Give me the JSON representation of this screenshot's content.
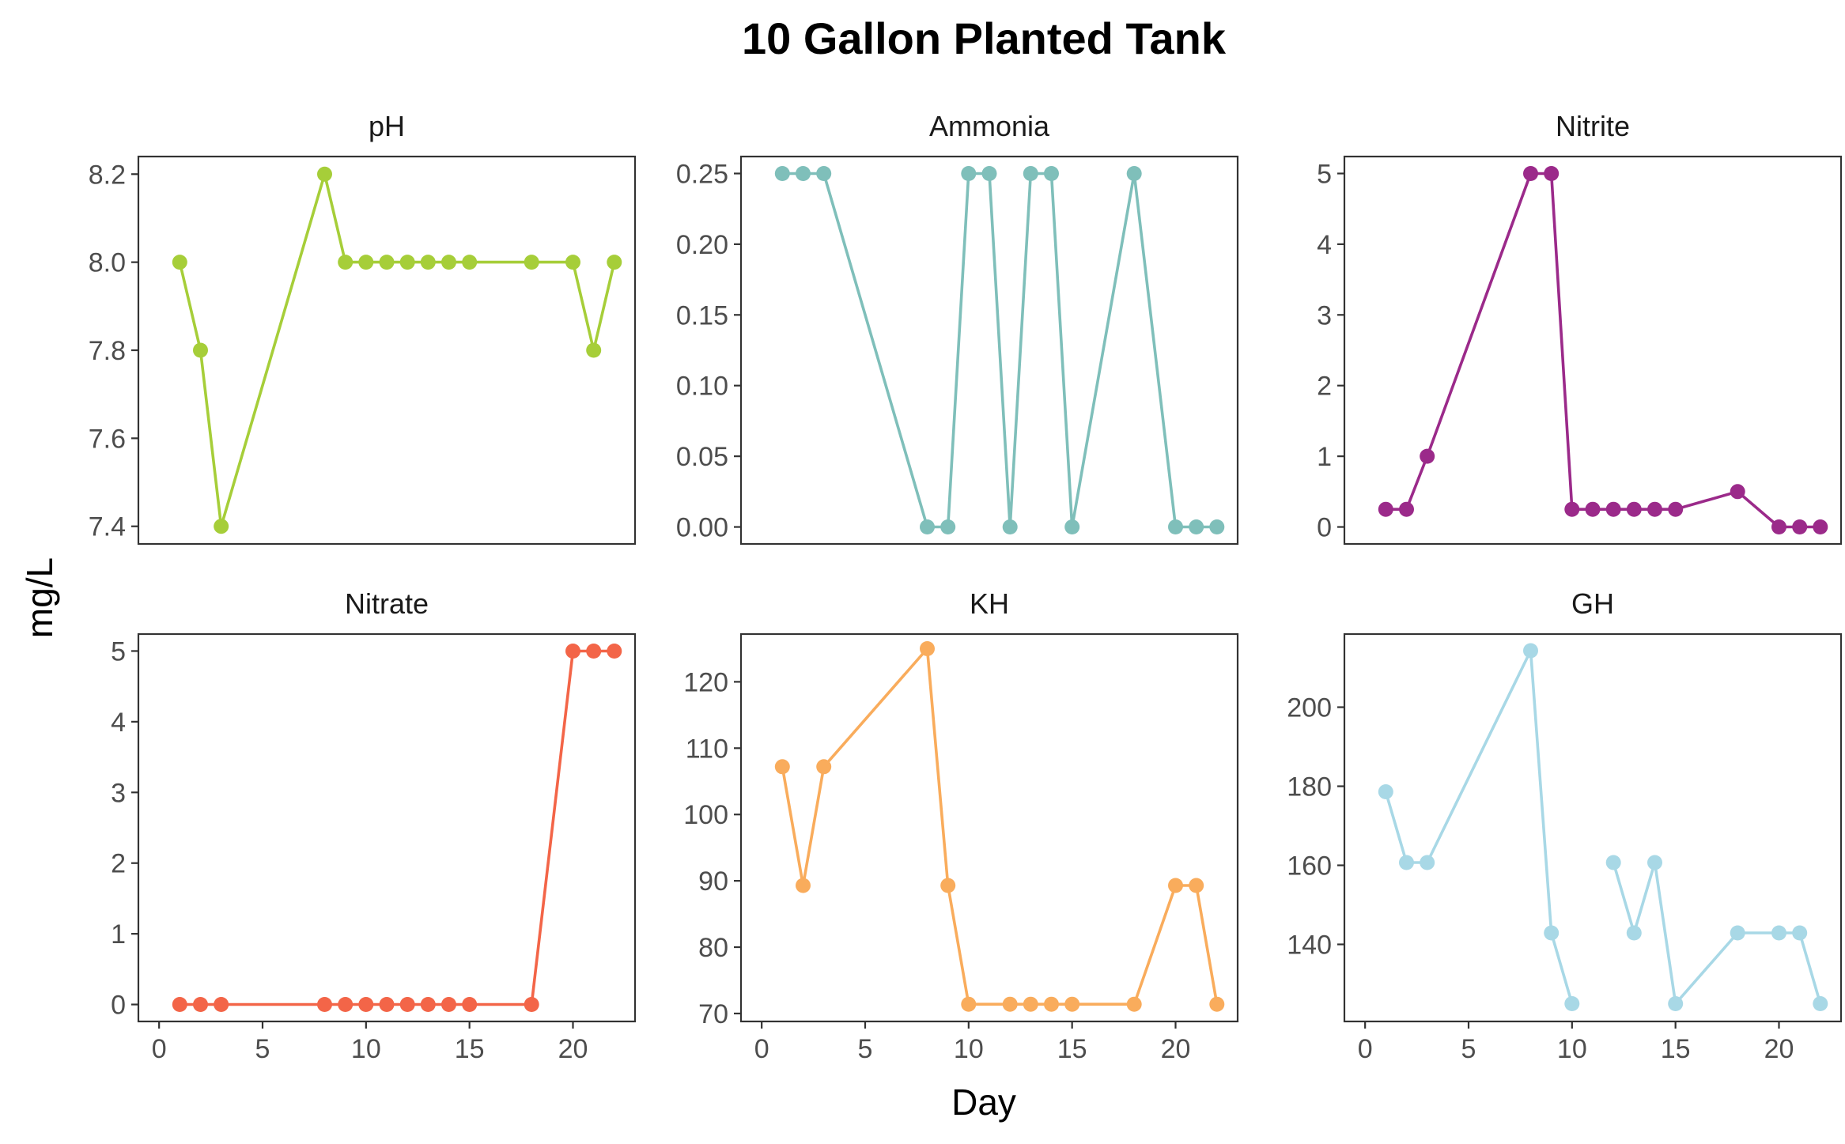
{
  "chart_data": {
    "type": "line",
    "title": "10 Gallon Planted Tank",
    "xlabel": "Day",
    "ylabel": "mg/L",
    "grid": false,
    "xlim": [
      -1,
      23
    ],
    "x_ticks": [
      0,
      5,
      10,
      15,
      20
    ],
    "panels": [
      {
        "name": "pH",
        "color": "#a6ce39",
        "ylim": [
          7.36,
          8.24
        ],
        "y_ticks": [
          7.4,
          7.6,
          7.8,
          8.0,
          8.2
        ],
        "x": [
          1,
          2,
          3,
          8,
          9,
          10,
          11,
          12,
          13,
          14,
          15,
          18,
          20,
          21,
          22
        ],
        "values": [
          8.0,
          7.8,
          7.4,
          8.2,
          8.0,
          8.0,
          8.0,
          8.0,
          8.0,
          8.0,
          8.0,
          8.0,
          8.0,
          7.8,
          8.0
        ]
      },
      {
        "name": "Ammonia",
        "color": "#7fbfba",
        "ylim": [
          -0.012,
          0.262
        ],
        "y_ticks": [
          0.0,
          0.05,
          0.1,
          0.15,
          0.2,
          0.25
        ],
        "x": [
          1,
          2,
          3,
          8,
          9,
          10,
          11,
          12,
          13,
          14,
          15,
          18,
          20,
          21,
          22
        ],
        "values": [
          0.25,
          0.25,
          0.25,
          0,
          0,
          0.25,
          0.25,
          0,
          0.25,
          0.25,
          0,
          0.25,
          0,
          0,
          0
        ]
      },
      {
        "name": "Nitrite",
        "color": "#9b2a8a",
        "ylim": [
          -0.24,
          5.24
        ],
        "y_ticks": [
          0,
          1,
          2,
          3,
          4,
          5
        ],
        "x": [
          1,
          2,
          3,
          8,
          9,
          10,
          11,
          12,
          13,
          14,
          15,
          18,
          20,
          21,
          22
        ],
        "values": [
          0.25,
          0.25,
          1,
          5,
          5,
          0.25,
          0.25,
          0.25,
          0.25,
          0.25,
          0.25,
          0.5,
          0,
          0,
          0
        ]
      },
      {
        "name": "Nitrate",
        "color": "#f36548",
        "ylim": [
          -0.24,
          5.24
        ],
        "y_ticks": [
          0,
          1,
          2,
          3,
          4,
          5
        ],
        "x": [
          1,
          2,
          3,
          8,
          9,
          10,
          11,
          12,
          13,
          14,
          15,
          18,
          20,
          21,
          22
        ],
        "values": [
          0,
          0,
          0,
          0,
          0,
          0,
          0,
          0,
          0,
          0,
          0,
          0,
          5,
          5,
          5
        ]
      },
      {
        "name": "KH",
        "color": "#f9ac5c",
        "ylim": [
          68.8,
          127.2
        ],
        "y_ticks": [
          70,
          80,
          90,
          100,
          110,
          120
        ],
        "x": [
          1,
          2,
          3,
          8,
          9,
          10,
          12,
          13,
          14,
          15,
          18,
          20,
          21,
          22
        ],
        "values": [
          107.2,
          89.3,
          107.2,
          125,
          89.3,
          71.4,
          71.4,
          71.4,
          71.4,
          71.4,
          71.4,
          89.3,
          89.3,
          71.4
        ]
      },
      {
        "name": "GH",
        "color": "#a8d8e6",
        "ylim": [
          120.5,
          218.5
        ],
        "y_ticks": [
          140,
          160,
          180,
          200
        ],
        "segments": [
          {
            "x": [
              1,
              2,
              3,
              8,
              9,
              10
            ],
            "values": [
              178.6,
              160.7,
              160.7,
              214.3,
              142.9,
              125
            ]
          },
          {
            "x": [
              12,
              13,
              14,
              15,
              18,
              20,
              21,
              22
            ],
            "values": [
              160.7,
              142.9,
              160.7,
              125,
              142.9,
              142.9,
              142.9,
              125
            ]
          }
        ]
      }
    ]
  }
}
